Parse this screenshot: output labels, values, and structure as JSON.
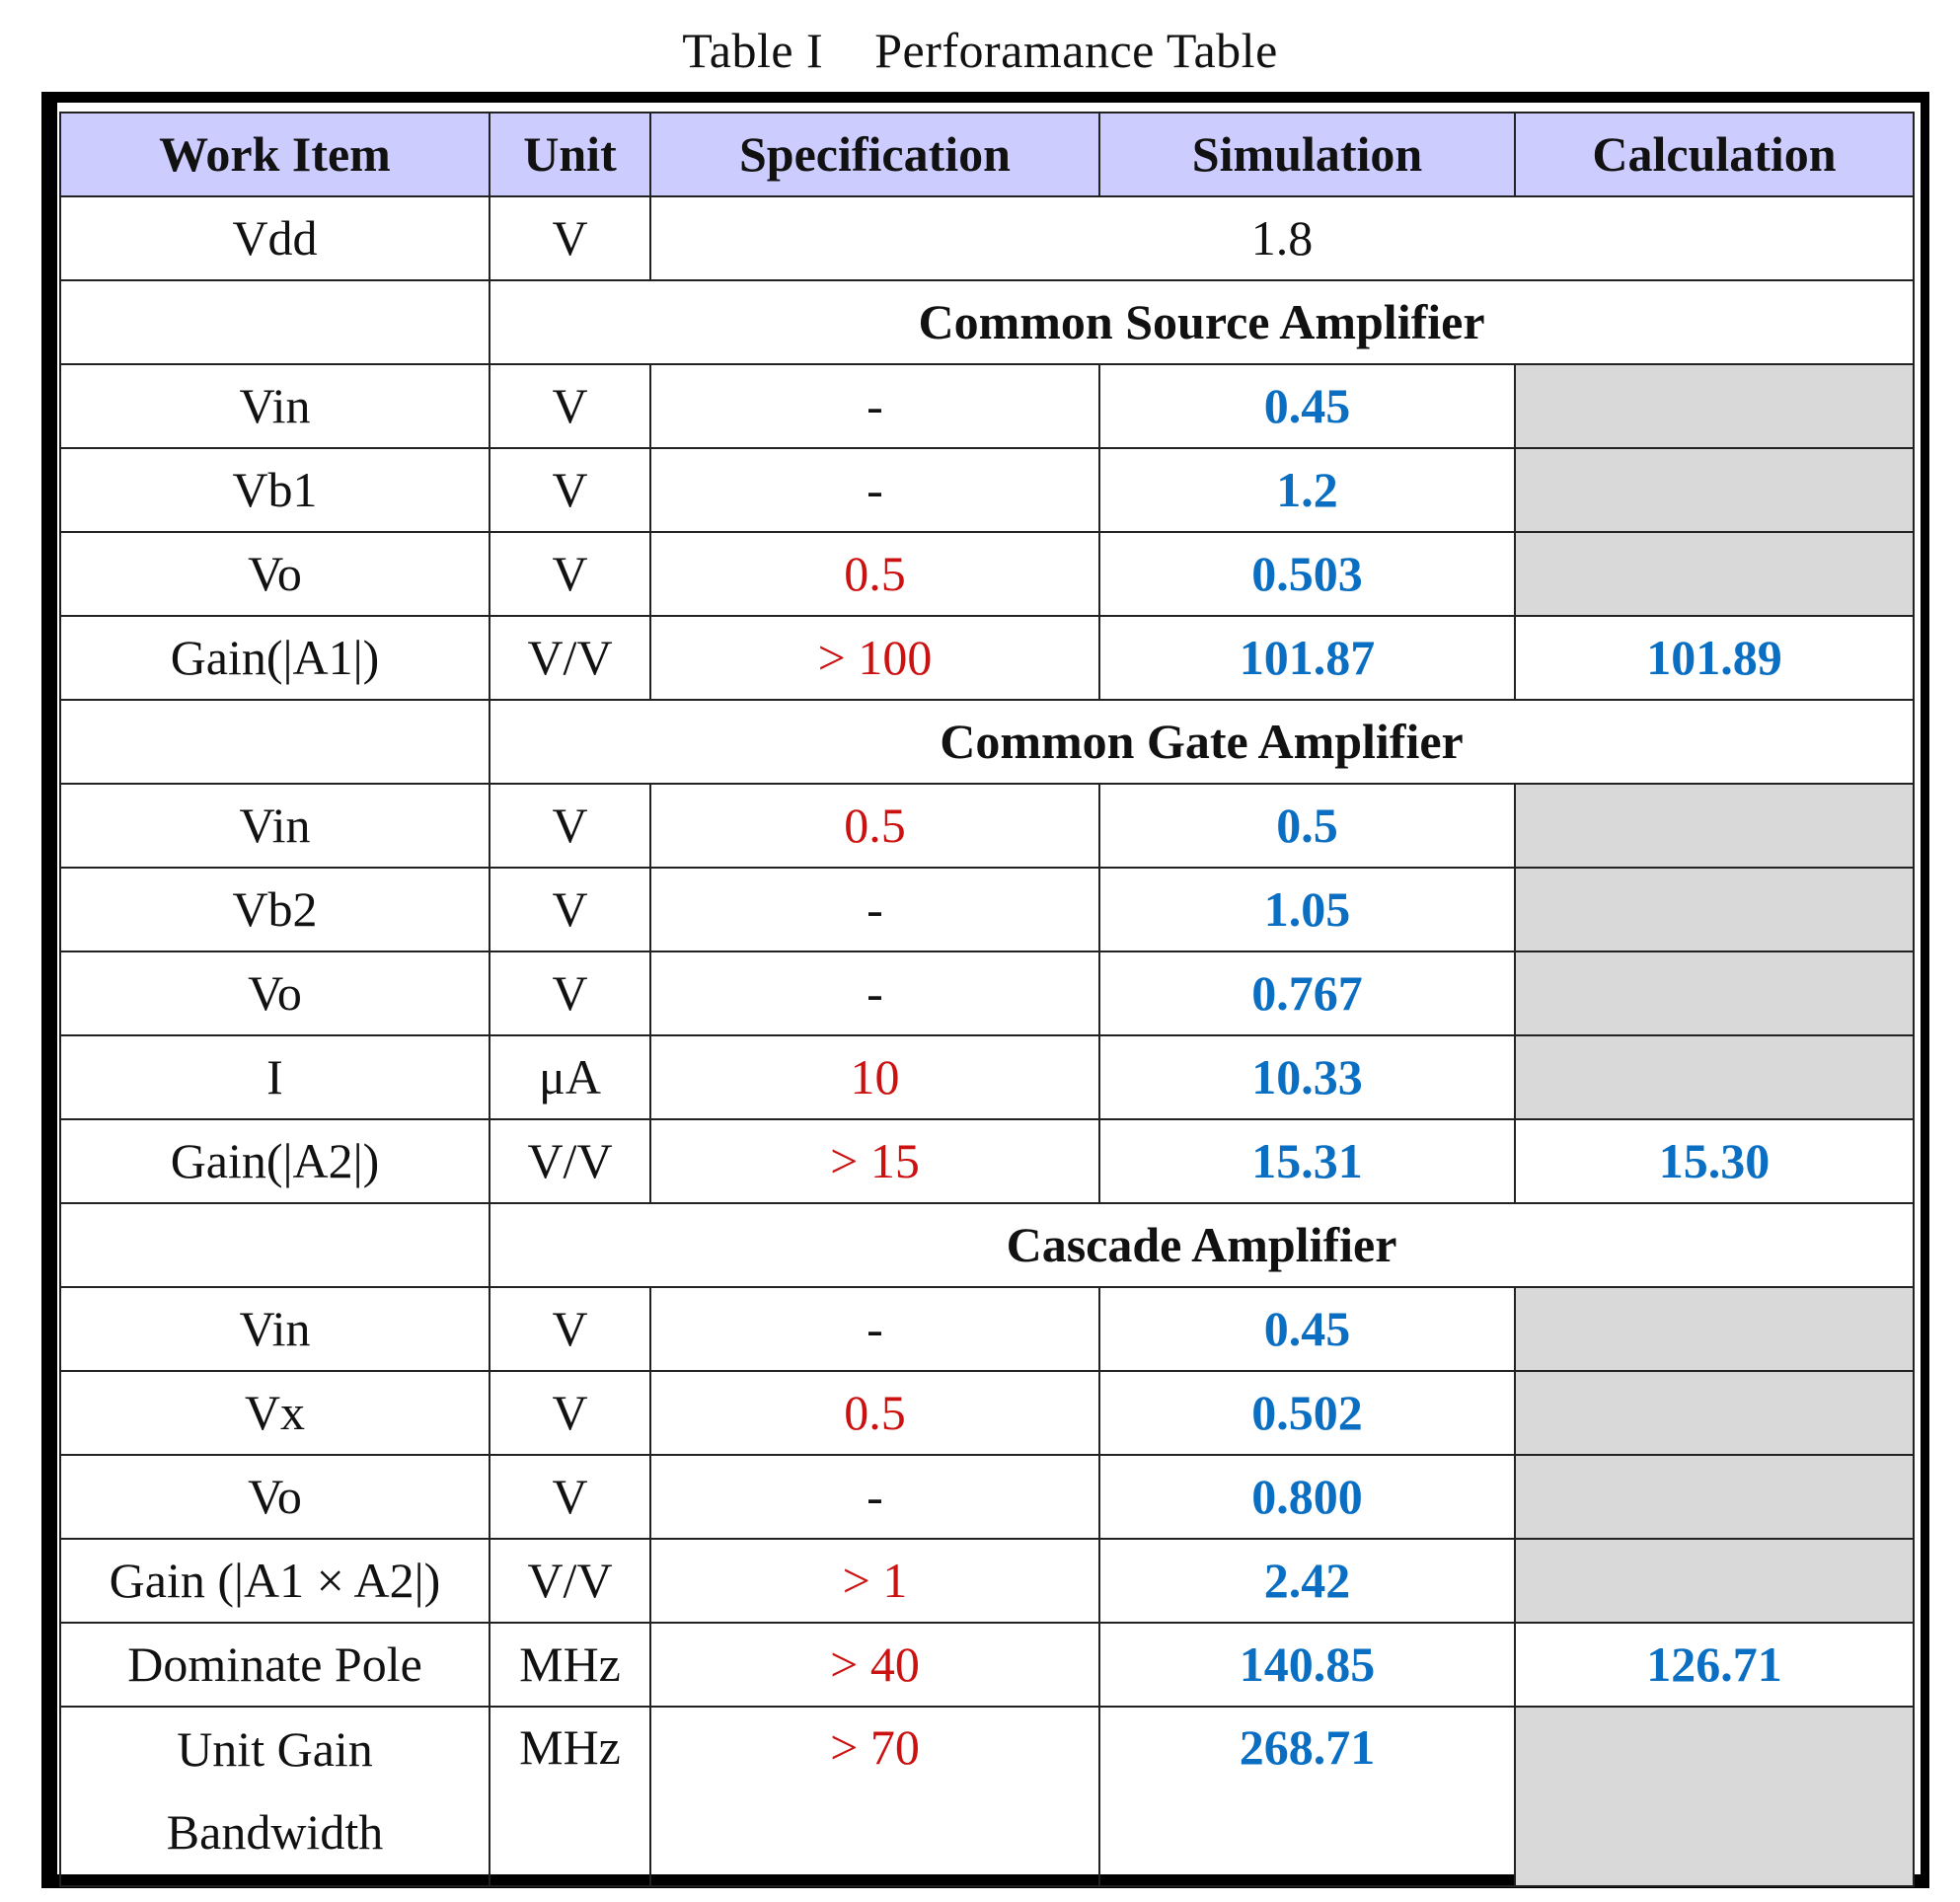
{
  "caption": {
    "table_no": "Table I",
    "title": "Perforamance Table"
  },
  "headers": [
    "Work Item",
    "Unit",
    "Specification",
    "Simulation",
    "Calculation"
  ],
  "vdd": {
    "item": "Vdd",
    "unit": "V",
    "value": "1.8"
  },
  "sections": [
    {
      "title": "Common Source Amplifier",
      "rows": [
        {
          "item": "Vin",
          "unit": "V",
          "spec": "-",
          "sim": "0.45",
          "calc": ""
        },
        {
          "item": "Vb1",
          "unit": "V",
          "spec": "-",
          "sim": "1.2",
          "calc": ""
        },
        {
          "item": "Vo",
          "unit": "V",
          "spec": "0.5",
          "sim": "0.503",
          "calc": ""
        },
        {
          "item": "Gain(|A1|)",
          "unit": "V/V",
          "spec": "> 100",
          "sim": "101.87",
          "calc": "101.89"
        }
      ]
    },
    {
      "title": "Common Gate Amplifier",
      "rows": [
        {
          "item": "Vin",
          "unit": "V",
          "spec": "0.5",
          "sim": "0.5",
          "calc": ""
        },
        {
          "item": "Vb2",
          "unit": "V",
          "spec": "-",
          "sim": "1.05",
          "calc": ""
        },
        {
          "item": "Vo",
          "unit": "V",
          "spec": "-",
          "sim": "0.767",
          "calc": ""
        },
        {
          "item": "I",
          "unit": "μA",
          "spec": "10",
          "sim": "10.33",
          "calc": ""
        },
        {
          "item": "Gain(|A2|)",
          "unit": "V/V",
          "spec": "> 15",
          "sim": "15.31",
          "calc": "15.30"
        }
      ]
    },
    {
      "title": "Cascade Amplifier",
      "rows": [
        {
          "item": "Vin",
          "unit": "V",
          "spec": "-",
          "sim": "0.45",
          "calc": ""
        },
        {
          "item": "Vx",
          "unit": "V",
          "spec": "0.5",
          "sim": "0.502",
          "calc": ""
        },
        {
          "item": "Vo",
          "unit": "V",
          "spec": "-",
          "sim": "0.800",
          "calc": ""
        },
        {
          "item": "Gain (|A1 × A2|)",
          "unit": "V/V",
          "spec": "> 1",
          "sim": "2.42",
          "calc": ""
        },
        {
          "item": "Dominate Pole",
          "unit": "MHz",
          "spec": "> 40",
          "sim": "140.85",
          "calc": "126.71"
        },
        {
          "item": "Unit Gain Bandwidth",
          "unit": "MHz",
          "spec": "> 70",
          "sim": "268.71",
          "calc": ""
        }
      ]
    }
  ],
  "colors": {
    "header_bg": "#ccccff",
    "spec_red": "#cc1111",
    "sim_blue": "#0a6fc2",
    "empty_gray": "#d9d9d9"
  }
}
